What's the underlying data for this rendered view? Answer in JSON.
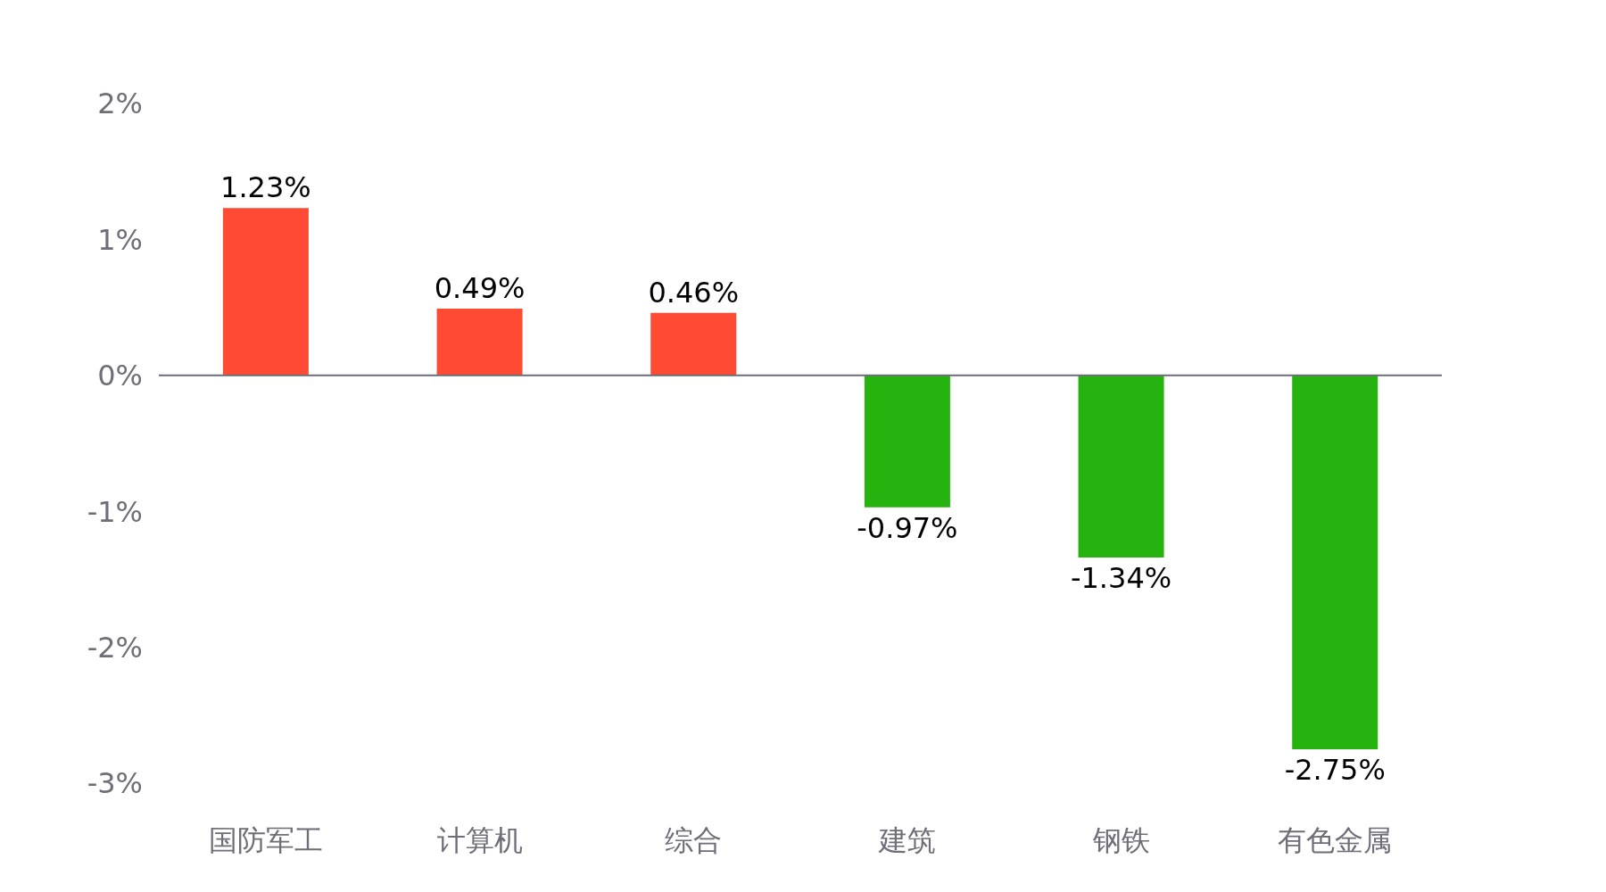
{
  "chart_data": {
    "type": "bar",
    "categories": [
      "国防军工",
      "计算机",
      "综合",
      "建筑",
      "钢铁",
      "有色金属"
    ],
    "values": [
      1.23,
      0.49,
      0.46,
      -0.97,
      -1.34,
      -2.75
    ],
    "colors": [
      "#ff4b33",
      "#ff4b33",
      "#ff4b33",
      "#27b30f",
      "#27b30f",
      "#27b30f"
    ],
    "value_labels": [
      "1.23%",
      "0.49%",
      "0.46%",
      "-0.97%",
      "-1.34%",
      "-2.75%"
    ],
    "ylim": [
      -3,
      2
    ],
    "yticks": [
      {
        "value": 2,
        "label": "2%"
      },
      {
        "value": 1,
        "label": "1%"
      },
      {
        "value": 0,
        "label": "0%"
      },
      {
        "value": -1,
        "label": "-1%"
      },
      {
        "value": -2,
        "label": "-2%"
      },
      {
        "value": -3,
        "label": "-3%"
      }
    ],
    "grid": false,
    "legend": false
  }
}
